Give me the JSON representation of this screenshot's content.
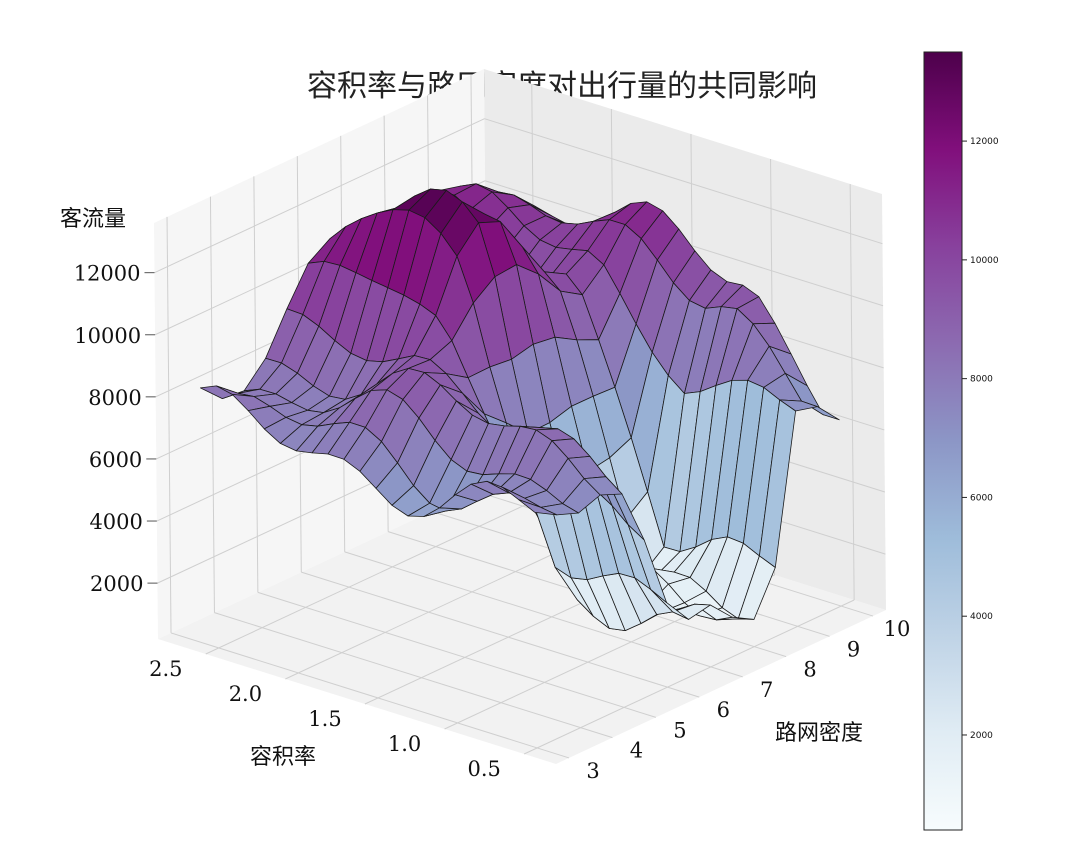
{
  "chart_data": {
    "type": "surface3d",
    "title": "容积率与路网密度对出行量的共同影响",
    "xlabel": "容积率",
    "ylabel": "路网密度",
    "zlabel": "客流量",
    "xlim": [
      0.3,
      2.8
    ],
    "ylim": [
      2.7,
      10.3
    ],
    "zlim": [
      200,
      13600
    ],
    "x_ticks": [
      "0.5",
      "1.0",
      "1.5",
      "2.0",
      "2.5"
    ],
    "y_ticks": [
      "3",
      "4",
      "5",
      "6",
      "7",
      "8",
      "9",
      "10"
    ],
    "z_ticks": [
      "2000",
      "4000",
      "6000",
      "8000",
      "10000",
      "12000"
    ],
    "colormap": "BuPu",
    "colorbar_range": [
      400,
      13500
    ],
    "colorbar_ticks": [
      "2000",
      "4000",
      "6000",
      "8000",
      "10000",
      "12000"
    ],
    "colors": {
      "low": "#f7fcfd",
      "mid": "#8c96c6",
      "high": "#4d004b",
      "grid": "#cfcfcf",
      "edge": "#1a1a1a"
    },
    "grid": true,
    "colorbar_placement": "right",
    "grid_x": [
      0.5,
      0.6,
      0.7,
      0.8,
      0.9,
      1.0,
      1.1,
      1.2,
      1.3,
      1.4,
      1.5,
      1.6,
      1.7,
      1.8,
      1.9,
      2.0,
      2.1,
      2.2,
      2.3,
      2.4,
      2.5,
      2.6
    ],
    "grid_y": [
      3.0,
      3.5,
      4.0,
      4.5,
      5.0,
      5.5,
      6.0,
      6.5,
      7.0,
      7.5,
      8.0,
      8.5,
      9.0,
      9.5,
      10.0
    ]
  }
}
